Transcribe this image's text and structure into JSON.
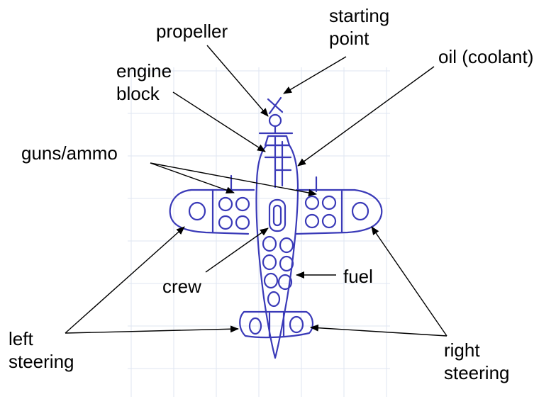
{
  "labels": {
    "starting_point": [
      "starting",
      "point"
    ],
    "propeller": "propeller",
    "engine_block": [
      "engine",
      "block"
    ],
    "oil": "oil (coolant)",
    "guns_ammo": "guns/ammo",
    "crew": "crew",
    "fuel": "fuel",
    "left_steering": [
      "left",
      "steering"
    ],
    "right_steering": [
      "right",
      "steering"
    ]
  },
  "colors": {
    "ink": "#3a3ab8",
    "grid": "#dfe5f2",
    "arrow": "#000000"
  }
}
